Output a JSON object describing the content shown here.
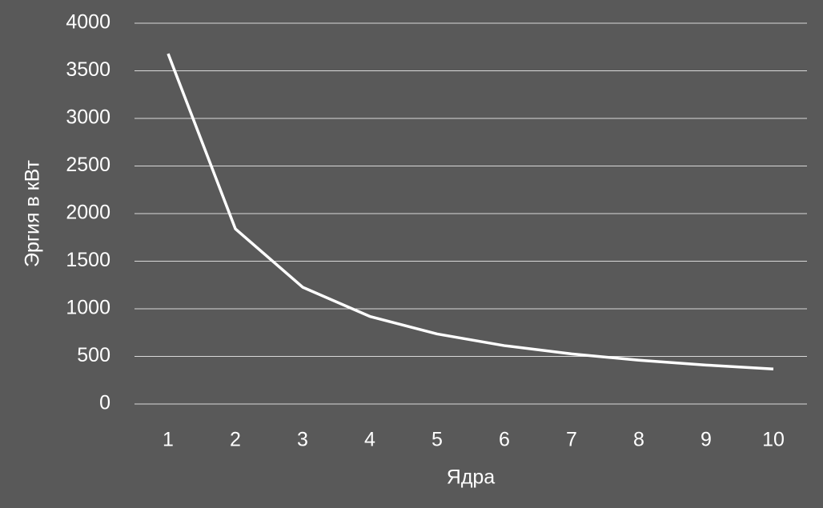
{
  "chart_data": {
    "type": "line",
    "x_label": "Ядра",
    "y_label": "Эргия в кВт",
    "categories": [
      "1",
      "2",
      "3",
      "4",
      "5",
      "6",
      "7",
      "8",
      "9",
      "10"
    ],
    "series": [
      {
        "name": "Эргия",
        "color": "#ffffff",
        "values": [
          3680,
          1840,
          1227,
          920,
          736,
          613,
          526,
          460,
          409,
          368
        ]
      }
    ],
    "ylim": [
      0,
      4000
    ],
    "yticks": [
      0,
      500,
      1000,
      1500,
      2000,
      2500,
      3000,
      3500,
      4000
    ],
    "grid": true
  }
}
